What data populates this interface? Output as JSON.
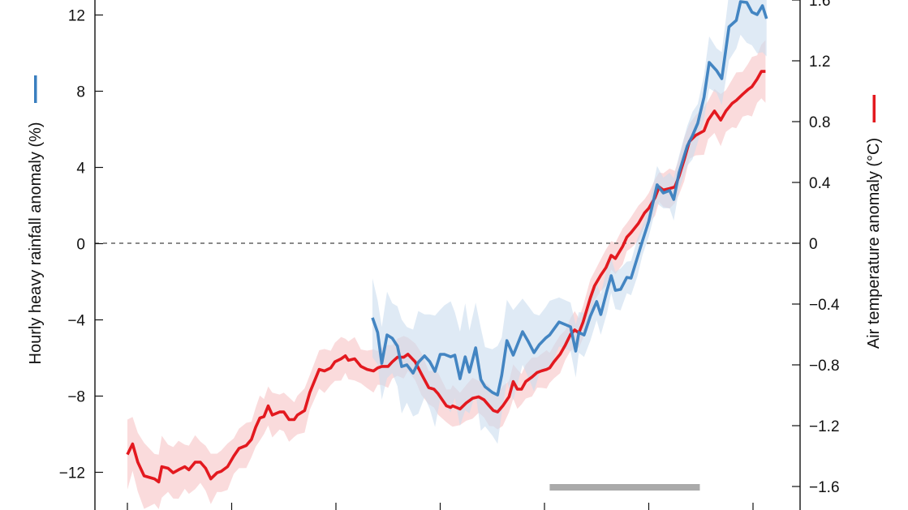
{
  "chart_data": {
    "type": "line",
    "title": "",
    "xlabel": "",
    "x_units": "tick index (x tick labels not visible)",
    "x_ticks": [
      0,
      1,
      2,
      3,
      4,
      5,
      6
    ],
    "y_left": {
      "label": "Hourly heavy rainfall anomaly (%)",
      "ticks": [
        12,
        8,
        4,
        0,
        -4,
        -8,
        -12
      ],
      "tick_labels": [
        "12",
        "8",
        "4",
        "0",
        "−4",
        "−8",
        "−12"
      ],
      "range": [
        -13.5,
        12.8
      ]
    },
    "y_right": {
      "label": "Air temperature anomaly (°C)",
      "ticks": [
        1.6,
        1.2,
        0.8,
        0.4,
        0,
        -0.4,
        -0.8,
        -1.2,
        -1.6
      ],
      "tick_labels": [
        "1.6",
        "1.2",
        "0.8",
        "0.4",
        "0",
        "−0.4",
        "−0.8",
        "−1.2",
        "−1.6"
      ],
      "range": [
        -1.75,
        1.6
      ]
    },
    "zero_line": "dashed",
    "grid": false,
    "series": [
      {
        "axis": "right",
        "color": "#e3191f",
        "band_color": "#f6c3c5",
        "band_halfwidth": [
          [
            0,
            0.2
          ],
          [
            1,
            0.13
          ],
          [
            3,
            0.12
          ],
          [
            5,
            0.1
          ],
          [
            6.13,
            0.18
          ]
        ],
        "x": [
          0,
          0.05,
          0.1,
          0.16,
          0.26,
          0.3,
          0.33,
          0.39,
          0.44,
          0.49,
          0.55,
          0.59,
          0.65,
          0.7,
          0.75,
          0.8,
          0.86,
          0.9,
          0.96,
          1.02,
          1.07,
          1.14,
          1.19,
          1.23,
          1.27,
          1.31,
          1.35,
          1.39,
          1.46,
          1.5,
          1.55,
          1.6,
          1.63,
          1.7,
          1.75,
          1.84,
          1.89,
          1.95,
          1.99,
          2.05,
          2.09,
          2.12,
          2.18,
          2.24,
          2.3,
          2.36,
          2.4,
          2.44,
          2.5,
          2.54,
          2.59,
          2.65,
          2.69,
          2.76,
          2.82,
          2.89,
          2.94,
          2.98,
          3.06,
          3.1,
          3.12,
          3.19,
          3.25,
          3.31,
          3.37,
          3.42,
          3.47,
          3.51,
          3.55,
          3.6,
          3.66,
          3.7,
          3.74,
          3.78,
          3.82,
          3.88,
          3.93,
          3.97,
          4.02,
          4.05,
          4.09,
          4.15,
          4.2,
          4.25,
          4.29,
          4.33,
          4.37,
          4.44,
          4.48,
          4.54,
          4.59,
          4.64,
          4.68,
          4.75,
          4.79,
          4.83,
          4.9,
          4.96,
          5.0,
          5.06,
          5.1,
          5.14,
          5.2,
          5.25,
          5.29,
          5.34,
          5.39,
          5.45,
          5.53,
          5.57,
          5.63,
          5.69,
          5.74,
          5.8,
          5.84,
          5.9,
          5.95,
          5.99,
          6.04,
          6.08,
          6.12
        ],
        "y": [
          -1.39,
          -1.32,
          -1.44,
          -1.53,
          -1.55,
          -1.57,
          -1.47,
          -1.48,
          -1.51,
          -1.49,
          -1.47,
          -1.49,
          -1.44,
          -1.44,
          -1.48,
          -1.55,
          -1.51,
          -1.5,
          -1.47,
          -1.4,
          -1.35,
          -1.33,
          -1.29,
          -1.21,
          -1.15,
          -1.14,
          -1.07,
          -1.13,
          -1.11,
          -1.11,
          -1.16,
          -1.16,
          -1.13,
          -1.1,
          -0.98,
          -0.83,
          -0.84,
          -0.82,
          -0.78,
          -0.76,
          -0.74,
          -0.77,
          -0.76,
          -0.81,
          -0.83,
          -0.84,
          -0.82,
          -0.81,
          -0.81,
          -0.78,
          -0.75,
          -0.75,
          -0.73,
          -0.78,
          -0.86,
          -0.95,
          -0.96,
          -0.99,
          -1.07,
          -1.08,
          -1.07,
          -1.09,
          -1.05,
          -1.02,
          -1.01,
          -1.03,
          -1.07,
          -1.1,
          -1.11,
          -1.07,
          -1.01,
          -0.91,
          -0.96,
          -0.96,
          -0.91,
          -0.88,
          -0.85,
          -0.84,
          -0.83,
          -0.82,
          -0.78,
          -0.73,
          -0.67,
          -0.6,
          -0.57,
          -0.59,
          -0.52,
          -0.36,
          -0.28,
          -0.21,
          -0.16,
          -0.08,
          -0.1,
          -0.02,
          0.04,
          0.07,
          0.13,
          0.2,
          0.23,
          0.3,
          0.37,
          0.35,
          0.36,
          0.37,
          0.44,
          0.55,
          0.67,
          0.71,
          0.74,
          0.81,
          0.87,
          0.81,
          0.87,
          0.92,
          0.94,
          0.98,
          1.01,
          1.03,
          1.08,
          1.13,
          1.13
        ]
      },
      {
        "axis": "left",
        "color": "#3a7fbf",
        "band_color": "#c9dcee",
        "band_halfwidth": [
          [
            2.35,
            1.8
          ],
          [
            3.0,
            2.6
          ],
          [
            3.6,
            2.2
          ],
          [
            4.3,
            1.2
          ],
          [
            5.0,
            0.8
          ],
          [
            5.6,
            1.2
          ],
          [
            6.13,
            2.2
          ]
        ],
        "x": [
          2.35,
          2.4,
          2.44,
          2.49,
          2.54,
          2.59,
          2.63,
          2.68,
          2.74,
          2.79,
          2.85,
          2.9,
          2.95,
          3.0,
          3.04,
          3.1,
          3.14,
          3.19,
          3.24,
          3.28,
          3.34,
          3.39,
          3.43,
          3.5,
          3.55,
          3.59,
          3.64,
          3.7,
          3.79,
          3.84,
          3.9,
          3.95,
          4.01,
          4.05,
          4.14,
          4.25,
          4.3,
          4.33,
          4.38,
          4.44,
          4.5,
          4.54,
          4.6,
          4.64,
          4.68,
          4.73,
          4.79,
          4.83,
          4.89,
          4.94,
          5.0,
          5.08,
          5.14,
          5.2,
          5.24,
          5.29,
          5.37,
          5.42,
          5.47,
          5.53,
          5.58,
          5.65,
          5.7,
          5.77,
          5.84,
          5.88,
          5.94,
          5.99,
          6.04,
          6.09,
          6.13
        ],
        "y": [
          -3.89,
          -4.66,
          -6.28,
          -4.79,
          -4.96,
          -5.38,
          -6.45,
          -6.36,
          -6.79,
          -6.23,
          -5.89,
          -6.19,
          -6.7,
          -5.81,
          -5.81,
          -5.94,
          -5.85,
          -7.09,
          -5.94,
          -6.74,
          -5.47,
          -7.13,
          -7.51,
          -7.81,
          -7.94,
          -6.91,
          -5.09,
          -5.85,
          -4.62,
          -5.09,
          -5.72,
          -5.3,
          -4.96,
          -4.79,
          -4.11,
          -4.36,
          -5.64,
          -4.66,
          -4.79,
          -3.81,
          -3.04,
          -3.72,
          -2.45,
          -1.68,
          -2.45,
          -2.4,
          -1.77,
          -1.81,
          -0.74,
          0.15,
          1.17,
          3.09,
          2.66,
          2.79,
          2.32,
          3.72,
          5.13,
          5.68,
          6.32,
          7.68,
          9.51,
          9.09,
          8.66,
          11.38,
          11.72,
          12.7,
          12.66,
          12.15,
          12.02,
          12.49,
          11.81
        ]
      }
    ],
    "period_bar": {
      "x": [
        4.05,
        5.49
      ],
      "color": "#aaaaaa"
    },
    "axis_color": "#111111",
    "zero_line_color": "#444444"
  }
}
